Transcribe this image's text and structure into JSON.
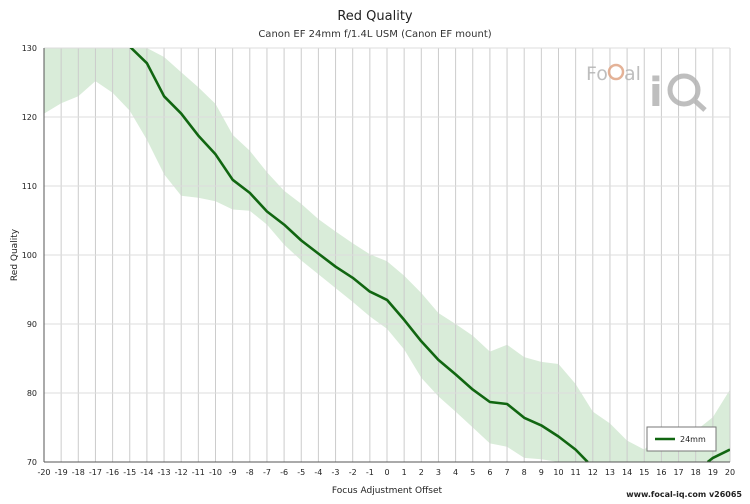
{
  "chart_data": {
    "type": "line",
    "title": "Red Quality",
    "subtitle": "Canon EF 24mm f/1.4L USM (Canon EF mount)",
    "xlabel": "Focus Adjustment Offset",
    "ylabel": "Red Quality",
    "xlim": [
      -20,
      20
    ],
    "ylim": [
      70,
      130
    ],
    "x_ticks": [
      -20,
      -19,
      -18,
      -17,
      -16,
      -15,
      -14,
      -13,
      -12,
      -11,
      -10,
      -9,
      -8,
      -7,
      -6,
      -5,
      -4,
      -3,
      -2,
      -1,
      0,
      1,
      2,
      3,
      4,
      5,
      6,
      7,
      8,
      9,
      10,
      11,
      12,
      13,
      14,
      15,
      16,
      17,
      18,
      19,
      20
    ],
    "y_ticks": [
      70,
      80,
      90,
      100,
      110,
      120,
      130
    ],
    "grid": "vertical lines at every x tick, horizontal lines at every y tick",
    "legend_position": "bottom-right",
    "series": [
      {
        "name": "24mm",
        "color": "#116611",
        "points": [
          [
            -15,
            130.2
          ],
          [
            -14,
            127.8
          ],
          [
            -13,
            123.0
          ],
          [
            -12,
            120.5
          ],
          [
            -11,
            117.3
          ],
          [
            -10,
            114.6
          ],
          [
            -9,
            110.9
          ],
          [
            -8,
            109.0
          ],
          [
            -7,
            106.3
          ],
          [
            -6,
            104.4
          ],
          [
            -5,
            102.1
          ],
          [
            -4,
            100.2
          ],
          [
            -3,
            98.3
          ],
          [
            -2,
            96.7
          ],
          [
            -1,
            94.7
          ],
          [
            0,
            93.5
          ],
          [
            1,
            90.6
          ],
          [
            2,
            87.5
          ],
          [
            3,
            84.8
          ],
          [
            4,
            82.7
          ],
          [
            5,
            80.5
          ],
          [
            6,
            78.7
          ],
          [
            7,
            78.4
          ],
          [
            8,
            76.4
          ],
          [
            9,
            75.3
          ],
          [
            10,
            73.7
          ],
          [
            11,
            71.8
          ],
          [
            11.7,
            70.0
          ],
          [
            18.7,
            70.0
          ],
          [
            19,
            70.6
          ],
          [
            20,
            71.8
          ]
        ]
      }
    ],
    "band": {
      "color": "#d9ecd9",
      "upper": [
        [
          -20,
          130
        ],
        [
          -15,
          130
        ],
        [
          -14,
          130
        ],
        [
          -13,
          128.7
        ],
        [
          -12,
          126.5
        ],
        [
          -11,
          124.3
        ],
        [
          -10,
          121.9
        ],
        [
          -9,
          117.4
        ],
        [
          -8,
          115.1
        ],
        [
          -7,
          112.0
        ],
        [
          -6,
          109.3
        ],
        [
          -5,
          107.4
        ],
        [
          -4,
          105.2
        ],
        [
          -3,
          103.4
        ],
        [
          -2,
          101.7
        ],
        [
          -1,
          100.1
        ],
        [
          0,
          99.1
        ],
        [
          1,
          97.0
        ],
        [
          2,
          94.5
        ],
        [
          3,
          91.6
        ],
        [
          4,
          90.0
        ],
        [
          5,
          88.3
        ],
        [
          6,
          86.0
        ],
        [
          7,
          87.0
        ],
        [
          8,
          85.2
        ],
        [
          9,
          84.5
        ],
        [
          10,
          84.2
        ],
        [
          11,
          81.3
        ],
        [
          12,
          77.3
        ],
        [
          13,
          75.6
        ],
        [
          14,
          73.1
        ],
        [
          15,
          71.8
        ],
        [
          16,
          74.3
        ],
        [
          17,
          74.0
        ],
        [
          18,
          74.5
        ],
        [
          19,
          76.5
        ],
        [
          20,
          80.5
        ]
      ],
      "lower": [
        [
          -20,
          120.5
        ],
        [
          -19,
          122.0
        ],
        [
          -18,
          123.0
        ],
        [
          -17,
          125.2
        ],
        [
          -16,
          123.5
        ],
        [
          -15,
          120.9
        ],
        [
          -14,
          116.7
        ],
        [
          -13,
          111.7
        ],
        [
          -12,
          108.6
        ],
        [
          -11,
          108.3
        ],
        [
          -10,
          107.8
        ],
        [
          -9,
          106.6
        ],
        [
          -8,
          106.4
        ],
        [
          -7,
          104.4
        ],
        [
          -6,
          101.5
        ],
        [
          -5,
          99.2
        ],
        [
          -4,
          97.2
        ],
        [
          -3,
          95.2
        ],
        [
          -2,
          93.2
        ],
        [
          -1,
          91.1
        ],
        [
          0,
          89.3
        ],
        [
          1,
          86.3
        ],
        [
          2,
          82.2
        ],
        [
          3,
          79.5
        ],
        [
          4,
          77.3
        ],
        [
          5,
          75.0
        ],
        [
          6,
          72.7
        ],
        [
          7,
          72.2
        ],
        [
          8,
          70.6
        ],
        [
          9,
          70.4
        ],
        [
          10,
          70.0
        ],
        [
          20,
          70.0
        ]
      ]
    },
    "watermark": "FoCal iQ",
    "footer": "www.focal-iq.com v26065"
  }
}
